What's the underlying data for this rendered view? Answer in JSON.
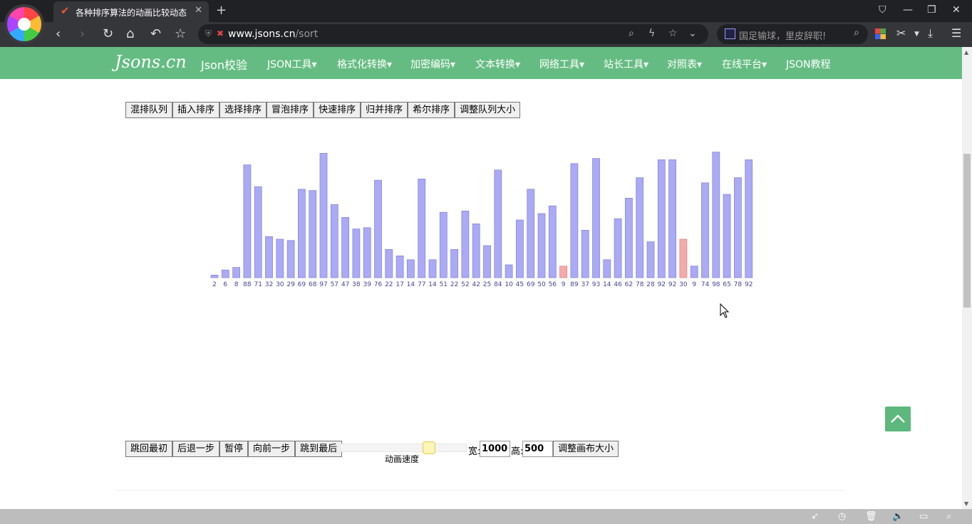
{
  "browser": {
    "tab_title": "各种排序算法的动画比较动态",
    "url_host": "www.jsons.cn",
    "url_path": "/sort",
    "search_placeholder": "国足输球，里皮辞职!"
  },
  "site": {
    "logo": "Jsons.cn",
    "nav": [
      "Json校验",
      "JSON工具▾",
      "格式化转换▾",
      "加密编码▾",
      "文本转换▾",
      "网络工具▾",
      "站长工具▾",
      "对照表▾",
      "在线平台▾",
      "JSON教程"
    ]
  },
  "sort_buttons": [
    "混排队列",
    "插入排序",
    "选择排序",
    "冒泡排序",
    "快速排序",
    "归并排序",
    "希尔排序",
    "调整队列大小"
  ],
  "chart_data": {
    "type": "bar",
    "values": [
      2,
      6,
      8,
      88,
      71,
      32,
      30,
      29,
      69,
      68,
      97,
      57,
      47,
      38,
      39,
      76,
      22,
      17,
      14,
      77,
      14,
      51,
      22,
      52,
      42,
      25,
      84,
      10,
      45,
      69,
      50,
      56,
      9,
      89,
      37,
      93,
      14,
      46,
      62,
      78,
      28,
      92,
      92,
      30,
      9,
      74,
      98,
      65,
      78,
      92
    ],
    "highlighted": [
      32,
      43
    ],
    "bar_color": "#aaaaf5",
    "highlight_color": "#f5aaaa",
    "ylim": [
      0,
      100
    ]
  },
  "controls": {
    "buttons": [
      "跳回最初",
      "后退一步",
      "暂停",
      "向前一步",
      "跳到最后"
    ],
    "speed_label": "动画速度",
    "speed": 0.7,
    "width_label": "宽:",
    "width_value": "1000",
    "height_label": "高:",
    "height_value": "500",
    "resize_button": "调整画布大小"
  }
}
